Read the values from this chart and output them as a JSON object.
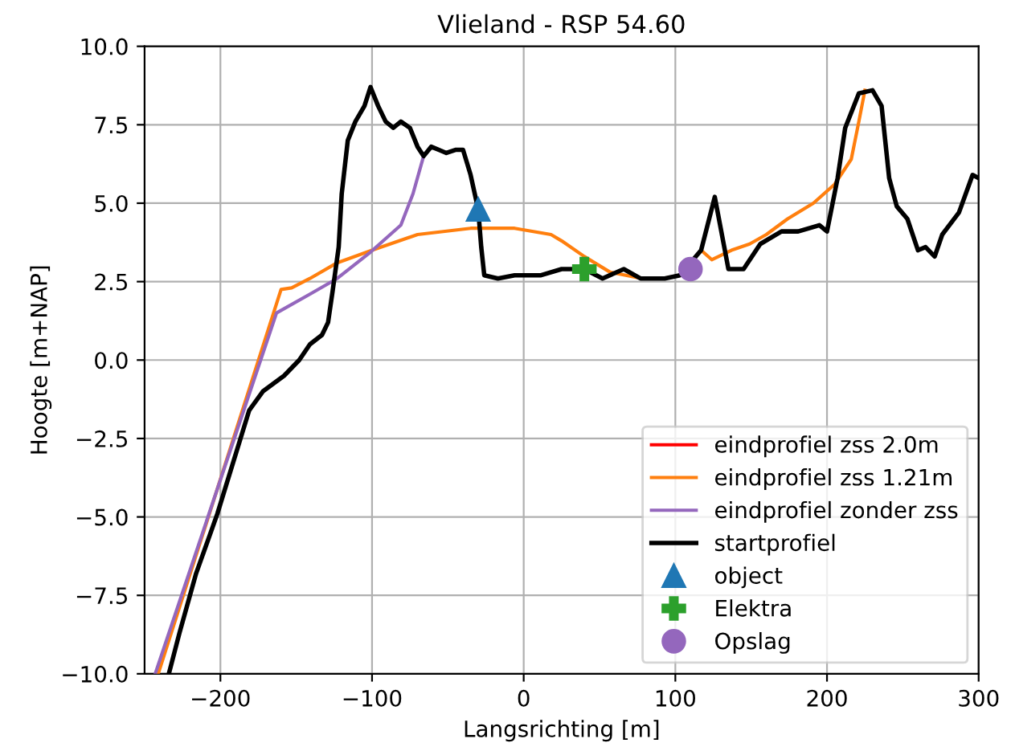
{
  "chart_data": {
    "type": "line",
    "title": "Vlieland - RSP 54.60",
    "xlabel": "Langsrichting [m]",
    "ylabel": "Hoogte [m+NAP]",
    "xlim": [
      -250,
      300
    ],
    "ylim": [
      -10,
      10
    ],
    "xticks": [
      {
        "value": -200,
        "label": "−200"
      },
      {
        "value": -100,
        "label": "−100"
      },
      0,
      100,
      200,
      300
    ],
    "yticks": [
      {
        "value": -10,
        "label": "−10.0"
      },
      {
        "value": -7.5,
        "label": "−7.5"
      },
      {
        "value": -5,
        "label": "−5.0"
      },
      {
        "value": -2.5,
        "label": "−2.5"
      },
      {
        "value": 0,
        "label": "0.0"
      },
      {
        "value": 2.5,
        "label": "2.5"
      },
      {
        "value": 5,
        "label": "5.0"
      },
      {
        "value": 7.5,
        "label": "7.5"
      },
      {
        "value": 10,
        "label": "10.0"
      }
    ],
    "grid": true,
    "legend": "bottom right",
    "series": [
      {
        "name": "eindprofiel zss 2.0m",
        "color": "#ff0000"
      },
      {
        "name": "eindprofiel zss 1.21m",
        "color": "#ff7f0e",
        "x": [
          -241,
          -160,
          -153,
          -141,
          -123,
          -100,
          -70,
          -35,
          -6,
          18,
          25,
          40,
          57,
          78,
          92,
          103,
          117,
          124,
          137,
          149,
          160,
          174,
          191,
          205,
          216,
          221,
          225
        ],
        "values": [
          -10,
          2.25,
          2.3,
          2.6,
          3.1,
          3.5,
          4.0,
          4.2,
          4.2,
          4.0,
          3.8,
          3.3,
          2.8,
          2.6,
          2.6,
          2.7,
          3.5,
          3.2,
          3.5,
          3.7,
          4.0,
          4.5,
          5.0,
          5.6,
          6.4,
          7.6,
          8.6
        ]
      },
      {
        "name": "eindprofiel zonder zss",
        "color": "#9467bd",
        "x": [
          -243,
          -163,
          -141,
          -123,
          -102,
          -81,
          -73,
          -66
        ],
        "values": [
          -10,
          1.5,
          2.1,
          2.6,
          3.4,
          4.3,
          5.3,
          6.5
        ]
      },
      {
        "name": "startprofiel",
        "color": "#000000",
        "x": [
          -234,
          -227,
          -216,
          -202,
          -181,
          -172,
          -158,
          -148,
          -141,
          -133,
          -129,
          -126,
          -122,
          -120,
          -116,
          -111,
          -105,
          -101,
          -96,
          -91,
          -86,
          -81,
          -75,
          -70,
          -66,
          -61,
          -56,
          -51,
          -45,
          -40,
          -35,
          -30,
          -28,
          -26,
          -17,
          -6,
          11,
          25,
          40,
          52,
          66,
          77,
          93,
          103,
          117,
          126,
          135,
          145,
          156,
          170,
          181,
          195,
          200,
          207,
          212,
          221,
          230,
          236,
          241,
          246,
          253,
          260,
          265,
          271,
          276,
          287,
          296,
          300
        ],
        "values": [
          -10,
          -8.7,
          -6.8,
          -4.9,
          -1.6,
          -1.0,
          -0.5,
          0.0,
          0.5,
          0.8,
          1.2,
          2.2,
          3.6,
          5.3,
          7.0,
          7.6,
          8.1,
          8.7,
          8.1,
          7.6,
          7.4,
          7.6,
          7.4,
          6.8,
          6.5,
          6.8,
          6.7,
          6.6,
          6.7,
          6.7,
          5.9,
          4.8,
          3.6,
          2.7,
          2.6,
          2.7,
          2.7,
          2.9,
          2.9,
          2.6,
          2.9,
          2.6,
          2.6,
          2.7,
          3.5,
          5.2,
          2.9,
          2.9,
          3.7,
          4.1,
          4.1,
          4.3,
          4.1,
          5.8,
          7.4,
          8.5,
          8.6,
          8.1,
          5.8,
          4.9,
          4.5,
          3.5,
          3.6,
          3.3,
          4.0,
          4.7,
          5.9,
          5.8
        ]
      },
      {
        "name": "object",
        "type": "scatter",
        "marker": "triangle",
        "color": "#1f77b4",
        "x": [
          -30
        ],
        "values": [
          4.8
        ]
      },
      {
        "name": "Elektra",
        "type": "scatter",
        "marker": "cross",
        "color": "#2ca02c",
        "x": [
          40
        ],
        "values": [
          2.9
        ]
      },
      {
        "name": "Opslag",
        "type": "scatter",
        "marker": "circle",
        "color": "#9467bd",
        "x": [
          110
        ],
        "values": [
          2.9
        ]
      }
    ]
  }
}
